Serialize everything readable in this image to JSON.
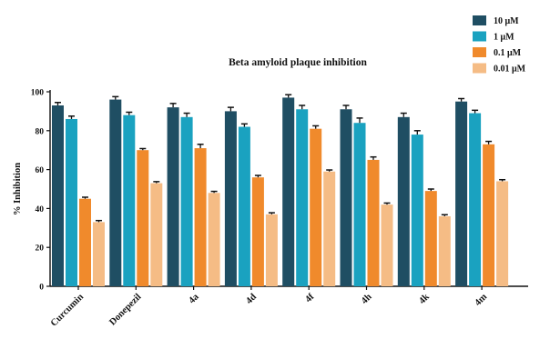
{
  "chart_data": {
    "type": "bar",
    "title": "Beta amyloid plaque inhibition",
    "ylabel": "% Inhibition",
    "xlabel": "",
    "ylim": [
      0,
      100
    ],
    "yticks": [
      0,
      20,
      40,
      60,
      80,
      100
    ],
    "grid": false,
    "legend_position": "top-right",
    "categories": [
      "Curcumin",
      "Donepezil",
      "4a",
      "4d",
      "4f",
      "4h",
      "4k",
      "4m"
    ],
    "series": [
      {
        "name": "10 μM",
        "color": "#1f4e63",
        "values": [
          93,
          96,
          92,
          90,
          97,
          91,
          87,
          95
        ],
        "errors": [
          1.5,
          1.5,
          2.0,
          2.0,
          1.5,
          2.0,
          2.0,
          1.5
        ]
      },
      {
        "name": "1 μM",
        "color": "#1aa2c0",
        "values": [
          86,
          88,
          87,
          82,
          91,
          84,
          78,
          89
        ],
        "errors": [
          1.5,
          1.5,
          2.0,
          1.5,
          2.0,
          2.5,
          2.0,
          1.5
        ]
      },
      {
        "name": "0.1 μM",
        "color": "#f08a2c",
        "values": [
          45,
          70,
          71,
          56,
          81,
          65,
          49,
          73
        ],
        "errors": [
          0.8,
          0.8,
          2.0,
          1.0,
          1.5,
          1.5,
          1.0,
          1.5
        ]
      },
      {
        "name": "0.01 μM",
        "color": "#f5bc85",
        "values": [
          33,
          53,
          48,
          37,
          59,
          42,
          36,
          54
        ],
        "errors": [
          0.8,
          0.8,
          0.8,
          0.8,
          0.8,
          0.8,
          0.8,
          0.8
        ]
      }
    ]
  }
}
